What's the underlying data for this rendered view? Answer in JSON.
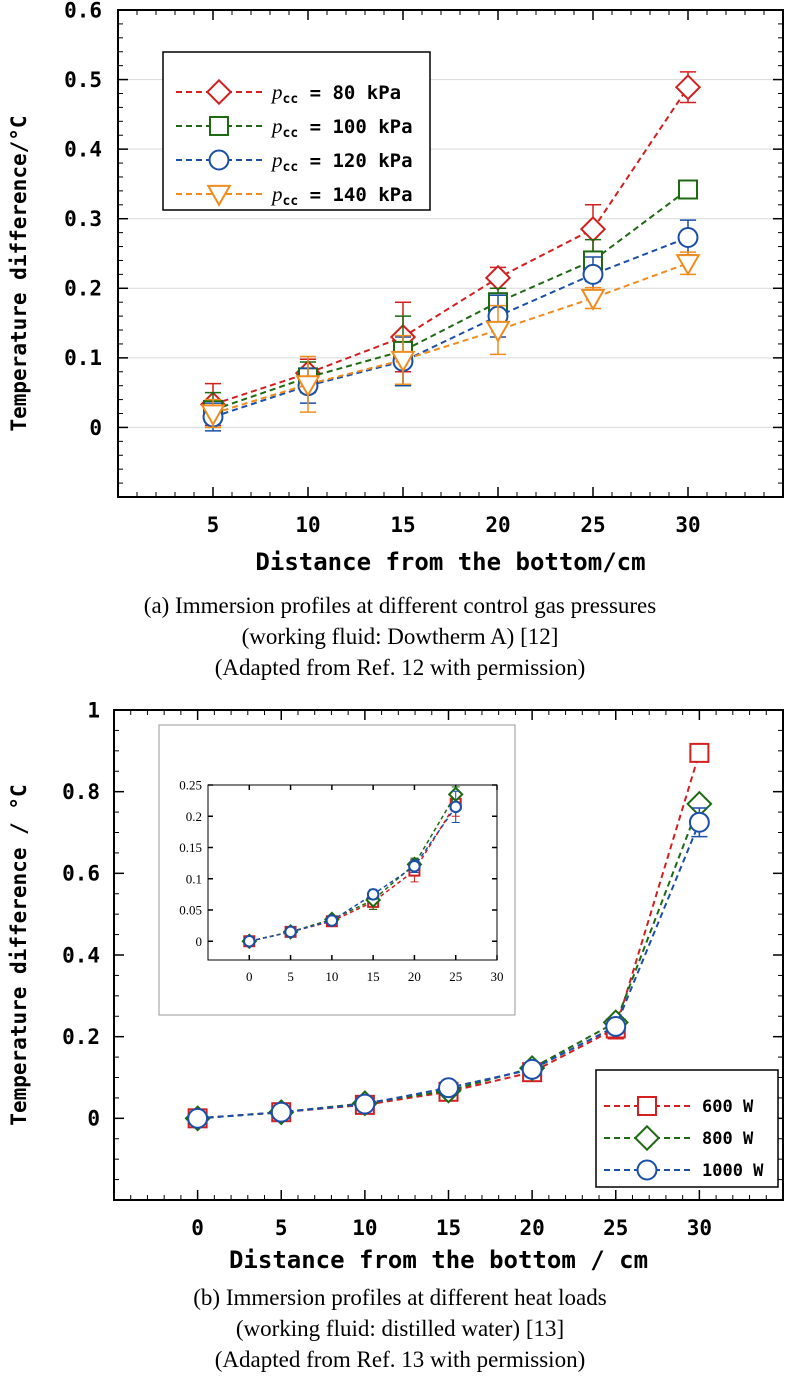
{
  "chart_data": [
    {
      "type": "line",
      "panel": "a",
      "xlabel": "Distance from the bottom/cm",
      "ylabel": "Temperature difference/°C",
      "x_range": [
        0,
        35
      ],
      "ylim": [
        -0.1,
        0.6
      ],
      "x_ticks": [
        "5",
        "10",
        "15",
        "20",
        "25",
        "30"
      ],
      "y_ticks": [
        "0",
        "0.1",
        "0.2",
        "0.3",
        "0.4",
        "0.5",
        "0.6"
      ],
      "x": [
        5,
        10,
        15,
        20,
        25,
        30
      ],
      "series": [
        {
          "name": "80 kPa",
          "color": "#d31f1f",
          "marker": "diamond",
          "values": [
            0.033,
            0.078,
            0.13,
            0.215,
            0.285,
            0.489
          ],
          "errors": [
            0.03,
            0.02,
            0.05,
            0.015,
            0.035,
            0.022
          ]
        },
        {
          "name": "100 kPa",
          "color": "#1d6a12",
          "marker": "square",
          "values": [
            0.025,
            0.072,
            0.11,
            0.18,
            0.24,
            0.342
          ],
          "errors": [
            0.025,
            0.022,
            0.05,
            0.02,
            0.03,
            0.012
          ]
        },
        {
          "name": "120 kPa",
          "color": "#1c4fa8",
          "marker": "circle",
          "values": [
            0.015,
            0.06,
            0.095,
            0.16,
            0.22,
            0.273
          ],
          "errors": [
            0.02,
            0.025,
            0.035,
            0.03,
            0.025,
            0.025
          ]
        },
        {
          "name": "140 kPa",
          "color": "#f08c1e",
          "marker": "triangle-down",
          "values": [
            0.02,
            0.062,
            0.097,
            0.14,
            0.186,
            0.236
          ],
          "errors": [
            0.02,
            0.04,
            0.035,
            0.035,
            0.015,
            0.016
          ]
        }
      ],
      "legend": {
        "prefix_symbol": "p",
        "prefix_sub": "cc",
        "prefix_eq": " = "
      },
      "caption_lines": [
        "(a) Immersion profiles at different control gas pressures",
        "(working fluid: Dowtherm A) [12]",
        "(Adapted from Ref. 12 with permission)"
      ]
    },
    {
      "type": "line",
      "panel": "b",
      "xlabel": "Distance from the bottom / cm",
      "ylabel": "Temperature difference / °C",
      "x_range": [
        -5,
        35
      ],
      "ylim": [
        -0.2,
        1.0
      ],
      "x_ticks": [
        "0",
        "5",
        "10",
        "15",
        "20",
        "25",
        "30"
      ],
      "y_ticks": [
        "0",
        "0.2",
        "0.4",
        "0.6",
        "0.8",
        "1"
      ],
      "x": [
        0,
        5,
        10,
        15,
        20,
        25,
        30
      ],
      "series": [
        {
          "name": "600 W",
          "color": "#d31f1f",
          "marker": "square",
          "values": [
            0.0,
            0.015,
            0.033,
            0.065,
            0.113,
            0.22,
            0.895
          ],
          "errors": [
            0,
            0,
            0,
            0,
            0,
            0.025,
            0
          ]
        },
        {
          "name": "800 W",
          "color": "#1d6a12",
          "marker": "diamond",
          "values": [
            0.0,
            0.015,
            0.037,
            0.068,
            0.123,
            0.235,
            0.77
          ],
          "errors": [
            0,
            0,
            0,
            0,
            0,
            0,
            0
          ]
        },
        {
          "name": "1000 W",
          "color": "#1c4fa8",
          "marker": "circle",
          "values": [
            0.0,
            0.015,
            0.035,
            0.075,
            0.12,
            0.225,
            0.725
          ],
          "errors": [
            0,
            0,
            0,
            0,
            0,
            0,
            0.035
          ]
        }
      ],
      "inset": {
        "x_range": [
          -5,
          30
        ],
        "ylim": [
          -0.03,
          0.25
        ],
        "x_ticks": [
          "0",
          "5",
          "10",
          "15",
          "20",
          "25",
          "30"
        ],
        "y_ticks": [
          "0",
          "0.05",
          "0.1",
          "0.15",
          "0.2",
          "0.25"
        ],
        "x": [
          0,
          5,
          10,
          15,
          20,
          25
        ],
        "series": [
          {
            "name": "600 W",
            "values": [
              0.0,
              0.015,
              0.032,
              0.063,
              0.113,
              0.22
            ],
            "errors": [
              0,
              0,
              0.005,
              0.012,
              0.018,
              0.02
            ]
          },
          {
            "name": "800 W",
            "values": [
              0.0,
              0.015,
              0.035,
              0.066,
              0.123,
              0.235
            ],
            "errors": [
              0,
              0,
              0.005,
              0.015,
              0.01,
              0.012
            ]
          },
          {
            "name": "1000 W",
            "values": [
              0.0,
              0.015,
              0.033,
              0.075,
              0.12,
              0.215
            ],
            "errors": [
              0,
              0,
              0.005,
              0.008,
              0.01,
              0.025
            ]
          }
        ]
      },
      "caption_lines": [
        "(b) Immersion profiles at different heat loads",
        "(working fluid: distilled water) [13]",
        "(Adapted from Ref. 13 with permission)"
      ]
    }
  ]
}
